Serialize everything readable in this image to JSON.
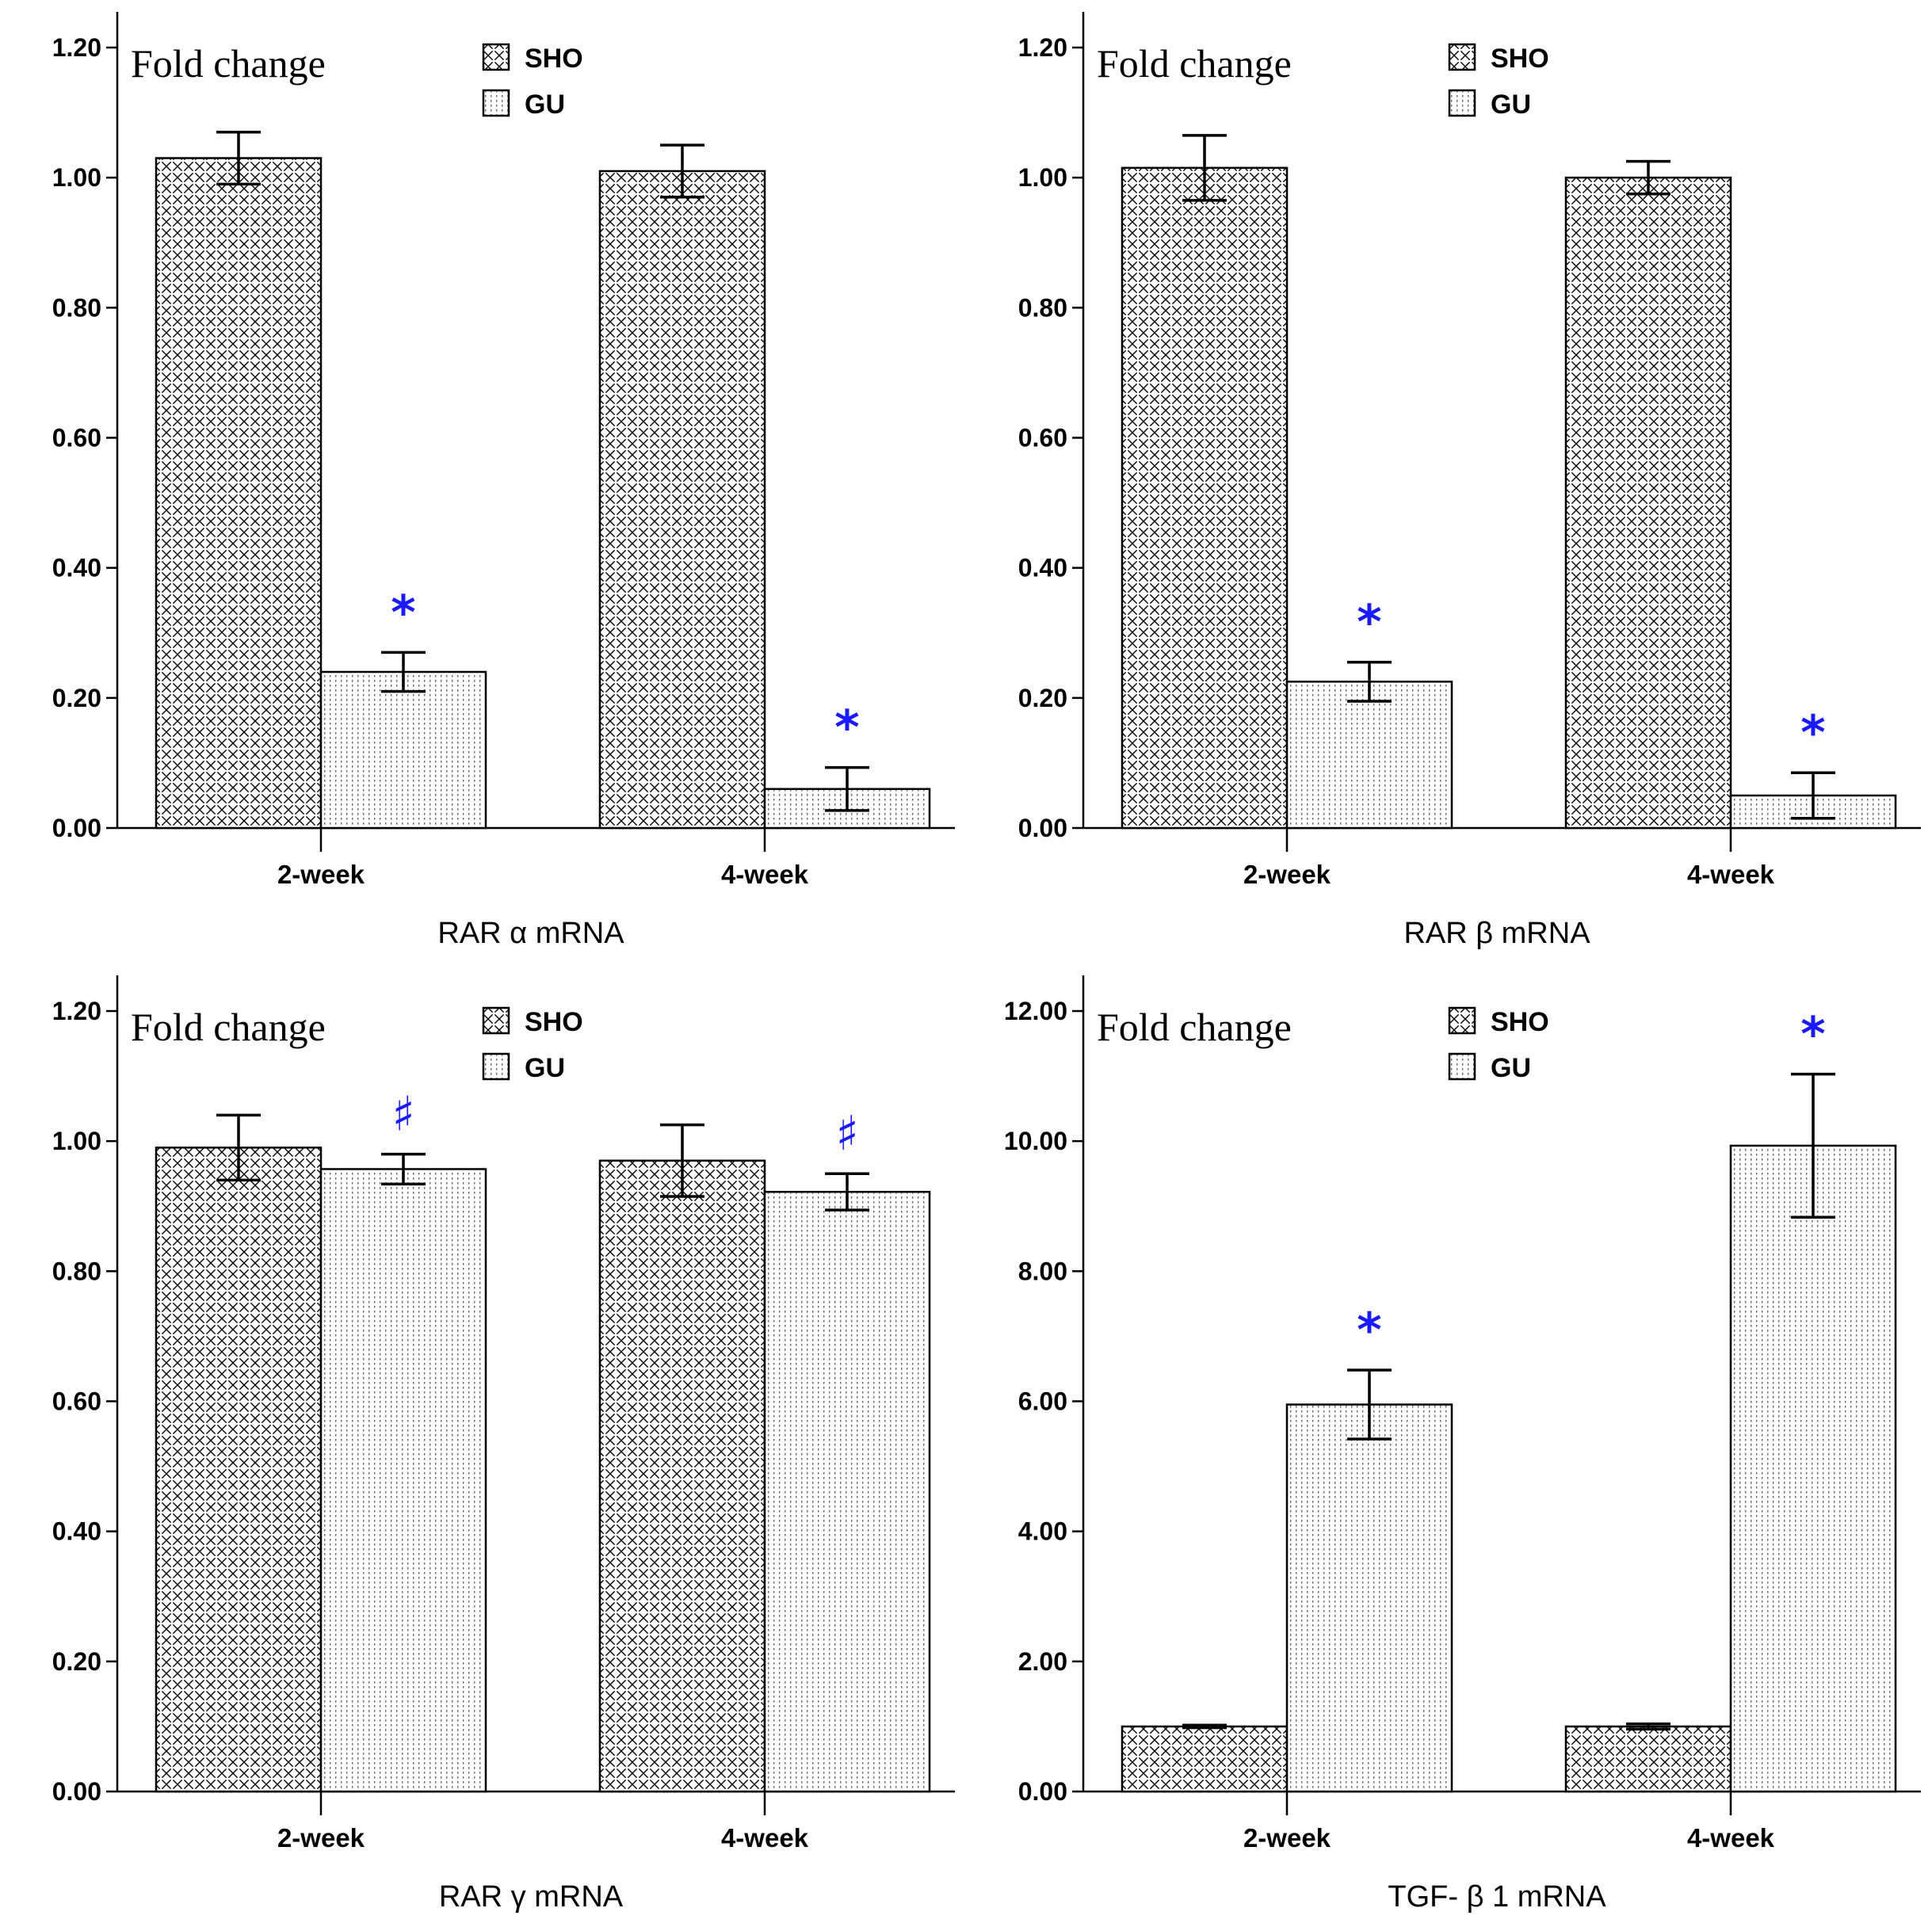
{
  "colors": {
    "axis": "#000000",
    "bar_stroke": "#000000",
    "marker": "#1a1aff",
    "background": "#ffffff"
  },
  "chart_data": [
    {
      "type": "bar",
      "ytitle": "Fold change",
      "xlabel": "RAR α  mRNA",
      "categories": [
        "2-week",
        "4-week"
      ],
      "ylim": [
        0,
        1.2
      ],
      "yticks": [
        "0.00",
        "0.20",
        "0.40",
        "0.60",
        "0.80",
        "1.00",
        "1.20"
      ],
      "series": [
        {
          "name": "SHO",
          "values": [
            1.03,
            1.01
          ],
          "errors": [
            0.04,
            0.04
          ]
        },
        {
          "name": "GU",
          "values": [
            0.24,
            0.06
          ],
          "errors": [
            0.03,
            0.033
          ]
        }
      ],
      "markers": [
        {
          "category": 0,
          "series": 1,
          "symbol": "*"
        },
        {
          "category": 1,
          "series": 1,
          "symbol": "*"
        }
      ],
      "legend_position": "top-center"
    },
    {
      "type": "bar",
      "ytitle": "Fold change",
      "xlabel": "RAR β  mRNA",
      "categories": [
        "2-week",
        "4-week"
      ],
      "ylim": [
        0,
        1.2
      ],
      "yticks": [
        "0.00",
        "0.20",
        "0.40",
        "0.60",
        "0.80",
        "1.00",
        "1.20"
      ],
      "series": [
        {
          "name": "SHO",
          "values": [
            1.015,
            1.0
          ],
          "errors": [
            0.05,
            0.025
          ]
        },
        {
          "name": "GU",
          "values": [
            0.225,
            0.05
          ],
          "errors": [
            0.03,
            0.035
          ]
        }
      ],
      "markers": [
        {
          "category": 0,
          "series": 1,
          "symbol": "*"
        },
        {
          "category": 1,
          "series": 1,
          "symbol": "*"
        }
      ],
      "legend_position": "top-center"
    },
    {
      "type": "bar",
      "ytitle": "Fold change",
      "xlabel": "RAR γ  mRNA",
      "categories": [
        "2-week",
        "4-week"
      ],
      "ylim": [
        0,
        1.2
      ],
      "yticks": [
        "0.00",
        "0.20",
        "0.40",
        "0.60",
        "0.80",
        "1.00",
        "1.20"
      ],
      "series": [
        {
          "name": "SHO",
          "values": [
            0.99,
            0.97
          ],
          "errors": [
            0.05,
            0.055
          ]
        },
        {
          "name": "GU",
          "values": [
            0.957,
            0.922
          ],
          "errors": [
            0.023,
            0.028
          ]
        }
      ],
      "markers": [
        {
          "category": 0,
          "series": 1,
          "symbol": "♯"
        },
        {
          "category": 1,
          "series": 1,
          "symbol": "♯"
        }
      ],
      "legend_position": "top-center"
    },
    {
      "type": "bar",
      "ytitle": "Fold change",
      "xlabel": "TGF- β 1 mRNA",
      "categories": [
        "2-week",
        "4-week"
      ],
      "ylim": [
        0,
        12
      ],
      "yticks": [
        "0.00",
        "2.00",
        "4.00",
        "6.00",
        "8.00",
        "10.00",
        "12.00"
      ],
      "series": [
        {
          "name": "SHO",
          "values": [
            1.0,
            1.0
          ],
          "errors": [
            0.02,
            0.04
          ]
        },
        {
          "name": "GU",
          "values": [
            5.95,
            9.93
          ],
          "errors": [
            0.53,
            1.1
          ]
        }
      ],
      "markers": [
        {
          "category": 0,
          "series": 1,
          "symbol": "*"
        },
        {
          "category": 1,
          "series": 1,
          "symbol": "*"
        }
      ],
      "legend_position": "top-center"
    }
  ]
}
